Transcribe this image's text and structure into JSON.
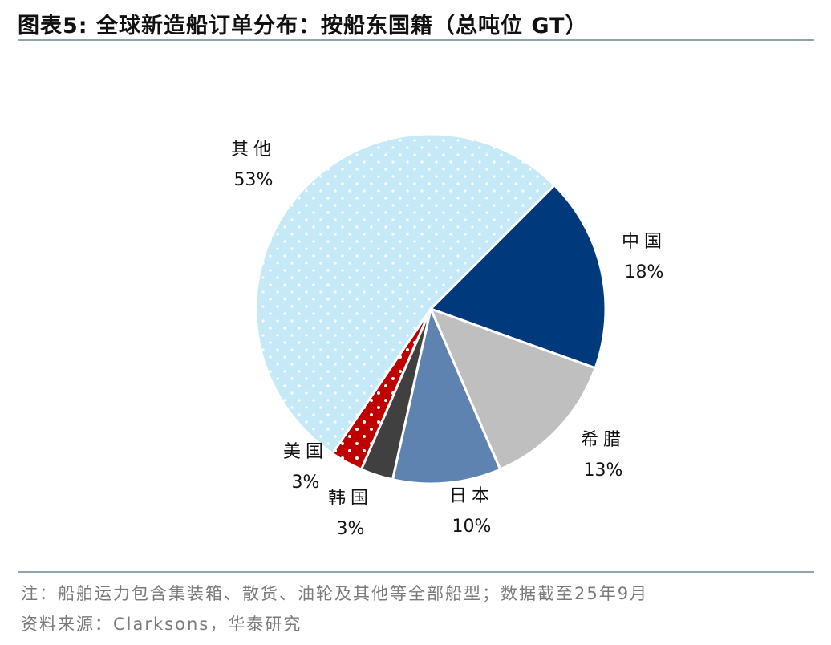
{
  "title": "图表5:  全球新造船订单分布：按船东国籍（总吨位 GT）",
  "chart_data": {
    "type": "pie",
    "title": "",
    "start_angle_deg": 45,
    "direction": "clockwise",
    "slices": [
      {
        "label": "中国",
        "value": 18,
        "value_label": "18%",
        "color": "#003A7D",
        "dotted": false
      },
      {
        "label": "希腊",
        "value": 13,
        "value_label": "13%",
        "color": "#BFBFBF",
        "dotted": false
      },
      {
        "label": "日本",
        "value": 10,
        "value_label": "10%",
        "color": "#5F83B0",
        "dotted": false
      },
      {
        "label": "韩国",
        "value": 3,
        "value_label": "3%",
        "color": "#404040",
        "dotted": false
      },
      {
        "label": "美国",
        "value": 3,
        "value_label": "3%",
        "color": "#C00000",
        "dotted": true
      },
      {
        "label": "其他",
        "value": 53,
        "value_label": "53%",
        "color": "#C6E9F8",
        "dotted": true
      }
    ]
  },
  "footer": {
    "note": "注：船舶运力包含集装箱、散货、油轮及其他等全部船型；数据截至25年9月",
    "source": "资料来源：Clarksons，华泰研究"
  }
}
